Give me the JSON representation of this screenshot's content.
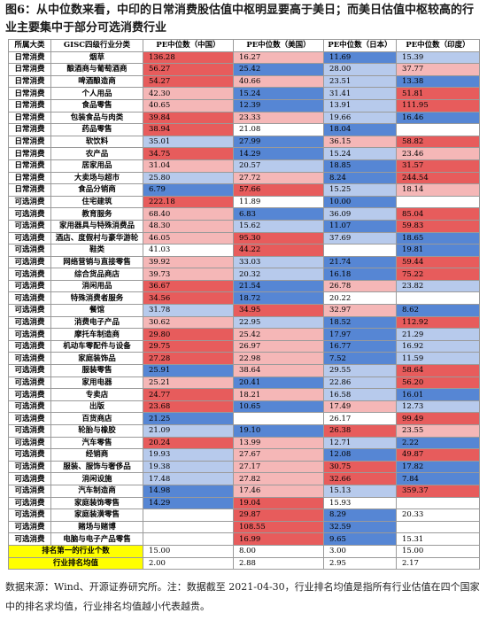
{
  "title": "图6：从中位数来看，中印的日常消费股估值中枢明显要高于美日；而美日估值中枢较高的行业主要集中于部分可选消费行业",
  "table": {
    "header": [
      "所属大类",
      "GISC四级行业分类",
      "PE中位数（中国）",
      "PE中位数（美国）",
      "PE中位数（日本）",
      "PE中位数（印度）"
    ],
    "rows": [
      [
        "日常消费",
        "烟草",
        "136.28",
        "16.27",
        "11.69",
        "15.39"
      ],
      [
        "日常消费",
        "酿酒商与葡萄酒商",
        "56.27",
        "25.42",
        "28.00",
        "37.77"
      ],
      [
        "日常消费",
        "啤酒酿造商",
        "54.27",
        "40.66",
        "23.51",
        "13.38"
      ],
      [
        "日常消费",
        "个人用品",
        "42.30",
        "15.24",
        "31.41",
        "51.81"
      ],
      [
        "日常消费",
        "食品零售",
        "40.65",
        "12.39",
        "13.91",
        "111.95"
      ],
      [
        "日常消费",
        "包装食品与肉类",
        "39.84",
        "23.33",
        "19.66",
        "16.46"
      ],
      [
        "日常消费",
        "药品零售",
        "38.94",
        "21.08",
        "18.04",
        null
      ],
      [
        "日常消费",
        "软饮料",
        "35.01",
        "27.99",
        "36.15",
        "58.82"
      ],
      [
        "日常消费",
        "农产品",
        "34.75",
        "14.29",
        "15.24",
        "23.46"
      ],
      [
        "日常消费",
        "居家用品",
        "31.04",
        "20.57",
        "18.85",
        "31.57"
      ],
      [
        "日常消费",
        "大卖场与超市",
        "25.80",
        "27.72",
        "8.24",
        "244.54"
      ],
      [
        "日常消费",
        "食品分销商",
        "6.79",
        "57.66",
        "15.25",
        "18.14"
      ],
      [
        "可选消费",
        "住宅建筑",
        "222.18",
        "11.89",
        "10.00",
        null
      ],
      [
        "可选消费",
        "教育服务",
        "68.40",
        "6.83",
        "36.09",
        "85.04"
      ],
      [
        "可选消费",
        "家用器具与特殊消费品",
        "48.30",
        "15.62",
        "11.07",
        "59.83"
      ],
      [
        "可选消费",
        "酒店、度假村与豪华游轮",
        "46.05",
        "95.30",
        "37.69",
        "18.65"
      ],
      [
        "可选消费",
        "鞋类",
        "41.03",
        "44.22",
        null,
        "19.81"
      ],
      [
        "可选消费",
        "网络营销与直接零售",
        "39.92",
        "33.03",
        "21.74",
        "59.44"
      ],
      [
        "可选消费",
        "综合货品商店",
        "39.73",
        "20.32",
        "16.18",
        "75.22"
      ],
      [
        "可选消费",
        "消闲用品",
        "36.67",
        "21.54",
        "26.78",
        "23.82"
      ],
      [
        "可选消费",
        "特殊消费者服务",
        "34.56",
        "18.72",
        "20.22",
        null
      ],
      [
        "可选消费",
        "餐馆",
        "31.78",
        "34.95",
        "32.97",
        "8.62"
      ],
      [
        "可选消费",
        "消费电子产品",
        "30.62",
        "22.95",
        "18.52",
        "112.92"
      ],
      [
        "可选消费",
        "摩托车制造商",
        "29.80",
        "25.42",
        "17.97",
        "21.29"
      ],
      [
        "可选消费",
        "机动车零配件与设备",
        "29.75",
        "26.97",
        "16.77",
        "16.92"
      ],
      [
        "可选消费",
        "家庭装饰品",
        "27.28",
        "22.98",
        "7.52",
        "11.59"
      ],
      [
        "可选消费",
        "服装零售",
        "25.91",
        "38.64",
        "29.55",
        "58.64"
      ],
      [
        "可选消费",
        "家用电器",
        "25.21",
        "20.41",
        "22.86",
        "56.20"
      ],
      [
        "可选消费",
        "专卖店",
        "24.77",
        "18.21",
        "16.58",
        "16.01"
      ],
      [
        "可选消费",
        "出版",
        "23.68",
        "10.65",
        "17.49",
        "12.73"
      ],
      [
        "可选消费",
        "百货商店",
        "21.25",
        null,
        "26.17",
        "99.49"
      ],
      [
        "可选消费",
        "轮胎与橡胶",
        "21.09",
        "19.10",
        "26.38",
        "23.55"
      ],
      [
        "可选消费",
        "汽车零售",
        "20.24",
        "13.99",
        "12.71",
        "2.22"
      ],
      [
        "可选消费",
        "经销商",
        "19.93",
        "27.67",
        "12.08",
        "49.87"
      ],
      [
        "可选消费",
        "服装、服饰与奢侈品",
        "19.38",
        "27.17",
        "30.75",
        "17.82"
      ],
      [
        "可选消费",
        "消闲设施",
        "17.48",
        "27.82",
        "32.66",
        "7.84"
      ],
      [
        "可选消费",
        "汽车制造商",
        "14.98",
        "17.46",
        "15.13",
        "359.37"
      ],
      [
        "可选消费",
        "家庭装饰零售",
        "14.29",
        "19.04",
        "15.93",
        null
      ],
      [
        "可选消费",
        "家庭装潢零售",
        null,
        "29.87",
        "8.29",
        "20.33"
      ],
      [
        "可选消费",
        "赌场与赌博",
        null,
        "108.55",
        "32.59",
        null
      ],
      [
        "可选消费",
        "电脑与电子产品零售",
        null,
        "16.99",
        "9.65",
        "15.31"
      ]
    ],
    "summary": [
      [
        "排名第一的行业个数",
        "15.00",
        "8.00",
        "3.00",
        "15.00"
      ],
      [
        "行业排名均值",
        "2.00",
        "2.88",
        "2.95",
        "2.17"
      ]
    ],
    "heat_colors": [
      "#e75c5c",
      "#f5b7b7",
      "#ffffff",
      "#b7caec",
      "#5686d4"
    ],
    "summary_color": "#ffff00"
  },
  "footnote": "数据来源：Wind、开源证券研究所。注：数据截至 2021-04-30，行业排名均值是指所有行业估值在四个国家中的排名求均值，行业排名均值越小代表越贵。"
}
